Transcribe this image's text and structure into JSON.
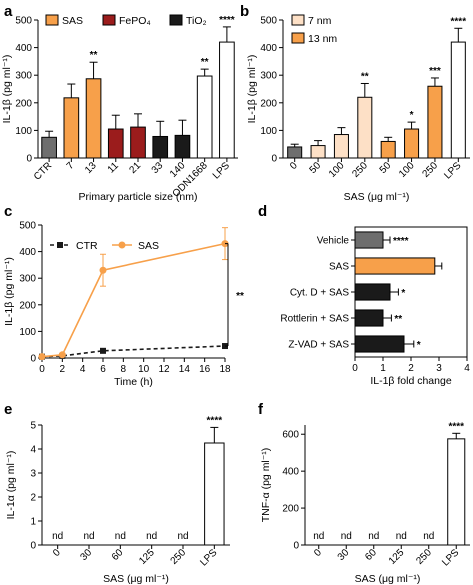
{
  "colors": {
    "gray": "#6e6e6e",
    "orange": "#f7a04a",
    "light_orange": "#fde0c6",
    "dark_red": "#9b1c1c",
    "black": "#1a1a1a",
    "white": "#ffffff",
    "axis": "#000000"
  },
  "chart_data": [
    {
      "panel": "a",
      "type": "bar",
      "ylabel": "IL-1β (pg ml⁻¹)",
      "xlabel": "Primary particle size (nm)",
      "ylim": [
        0,
        500
      ],
      "yticks": [
        0,
        100,
        200,
        300,
        400,
        500
      ],
      "legend": [
        "SAS",
        "FePO₄",
        "TiO₂"
      ],
      "legend_colors": [
        "orange",
        "dark_red",
        "black"
      ],
      "categories": [
        "CTR",
        "7",
        "13",
        "11",
        "21",
        "33",
        "140",
        "ODN1668",
        "LPS"
      ],
      "values": [
        75,
        218,
        287,
        105,
        112,
        78,
        82,
        297,
        420
      ],
      "errors": [
        22,
        50,
        60,
        50,
        48,
        55,
        55,
        25,
        55
      ],
      "fills": [
        "gray",
        "orange",
        "orange",
        "dark_red",
        "dark_red",
        "black",
        "black",
        "white",
        "white"
      ],
      "sig": [
        "",
        "",
        "**",
        "",
        "",
        "",
        "",
        "**",
        "****"
      ]
    },
    {
      "panel": "b",
      "type": "bar",
      "ylabel": "IL-1β (pg ml⁻¹)",
      "xlabel": "SAS (μg ml⁻¹)",
      "ylim": [
        0,
        500
      ],
      "yticks": [
        0,
        100,
        200,
        300,
        400,
        500
      ],
      "legend": [
        "7 nm",
        "13 nm"
      ],
      "legend_colors": [
        "light_orange",
        "orange"
      ],
      "categories": [
        "0",
        "50",
        "100",
        "250",
        "50",
        "100",
        "250",
        "LPS"
      ],
      "values": [
        40,
        45,
        85,
        220,
        60,
        105,
        260,
        420
      ],
      "errors": [
        10,
        18,
        25,
        50,
        15,
        25,
        30,
        50
      ],
      "fills": [
        "gray",
        "light_orange",
        "light_orange",
        "light_orange",
        "orange",
        "orange",
        "orange",
        "white"
      ],
      "sig": [
        "",
        "",
        "",
        "**",
        "",
        "*",
        "***",
        "****"
      ]
    },
    {
      "panel": "c",
      "type": "line",
      "ylabel": "IL-1β (pg ml⁻¹)",
      "xlabel": "Time (h)",
      "xlim": [
        0,
        18
      ],
      "xticks": [
        0,
        2,
        4,
        6,
        8,
        10,
        12,
        14,
        16,
        18
      ],
      "ylim": [
        0,
        500
      ],
      "yticks": [
        0,
        100,
        200,
        300,
        400,
        500
      ],
      "series": [
        {
          "name": "CTR",
          "x": [
            0,
            2,
            6,
            18
          ],
          "y": [
            5,
            8,
            27,
            45
          ],
          "err": [
            2,
            3,
            5,
            4
          ],
          "color": "black",
          "dashed": true
        },
        {
          "name": "SAS",
          "x": [
            0,
            2,
            6,
            18
          ],
          "y": [
            5,
            12,
            330,
            430
          ],
          "err": [
            2,
            3,
            60,
            60
          ],
          "color": "orange",
          "dashed": false
        }
      ],
      "sig": "**"
    },
    {
      "panel": "d",
      "type": "hbar",
      "xlabel": "IL-1β fold change",
      "xlim": [
        0,
        4
      ],
      "xticks": [
        0,
        1,
        2,
        3,
        4
      ],
      "categories": [
        "Vehicle",
        "SAS",
        "Cyt. D + SAS",
        "Rottlerin + SAS",
        "Z-VAD + SAS"
      ],
      "values": [
        1.0,
        2.85,
        1.25,
        1.0,
        1.75
      ],
      "errors": [
        0.25,
        0.25,
        0.3,
        0.3,
        0.35
      ],
      "fills": [
        "gray",
        "orange",
        "black",
        "black",
        "black"
      ],
      "sig": [
        "****",
        "",
        "*",
        "**",
        "*"
      ]
    },
    {
      "panel": "e",
      "type": "bar",
      "ylabel": "IL-1α (pg ml⁻¹)",
      "xlabel": "SAS (μg ml⁻¹)",
      "ylim": [
        0,
        5
      ],
      "yticks": [
        0,
        1,
        2,
        3,
        4,
        5
      ],
      "categories": [
        "0",
        "30",
        "60",
        "125",
        "250",
        "LPS"
      ],
      "values": [
        null,
        null,
        null,
        null,
        null,
        4.25
      ],
      "errors": [
        0,
        0,
        0,
        0,
        0,
        0.65
      ],
      "labels": [
        "nd",
        "nd",
        "nd",
        "nd",
        "nd",
        ""
      ],
      "sig": [
        "",
        "",
        "",
        "",
        "",
        "****"
      ]
    },
    {
      "panel": "f",
      "type": "bar",
      "ylabel": "TNF-α (pg ml⁻¹)",
      "xlabel": "SAS (μg ml⁻¹)",
      "ylim": [
        0,
        650
      ],
      "yticks": [
        0,
        200,
        400,
        600
      ],
      "categories": [
        "0",
        "30",
        "60",
        "125",
        "250",
        "LPS"
      ],
      "values": [
        null,
        null,
        null,
        null,
        null,
        575
      ],
      "errors": [
        0,
        0,
        0,
        0,
        0,
        30
      ],
      "labels": [
        "nd",
        "nd",
        "nd",
        "nd",
        "nd",
        ""
      ],
      "sig": [
        "",
        "",
        "",
        "",
        "",
        "****"
      ]
    }
  ]
}
